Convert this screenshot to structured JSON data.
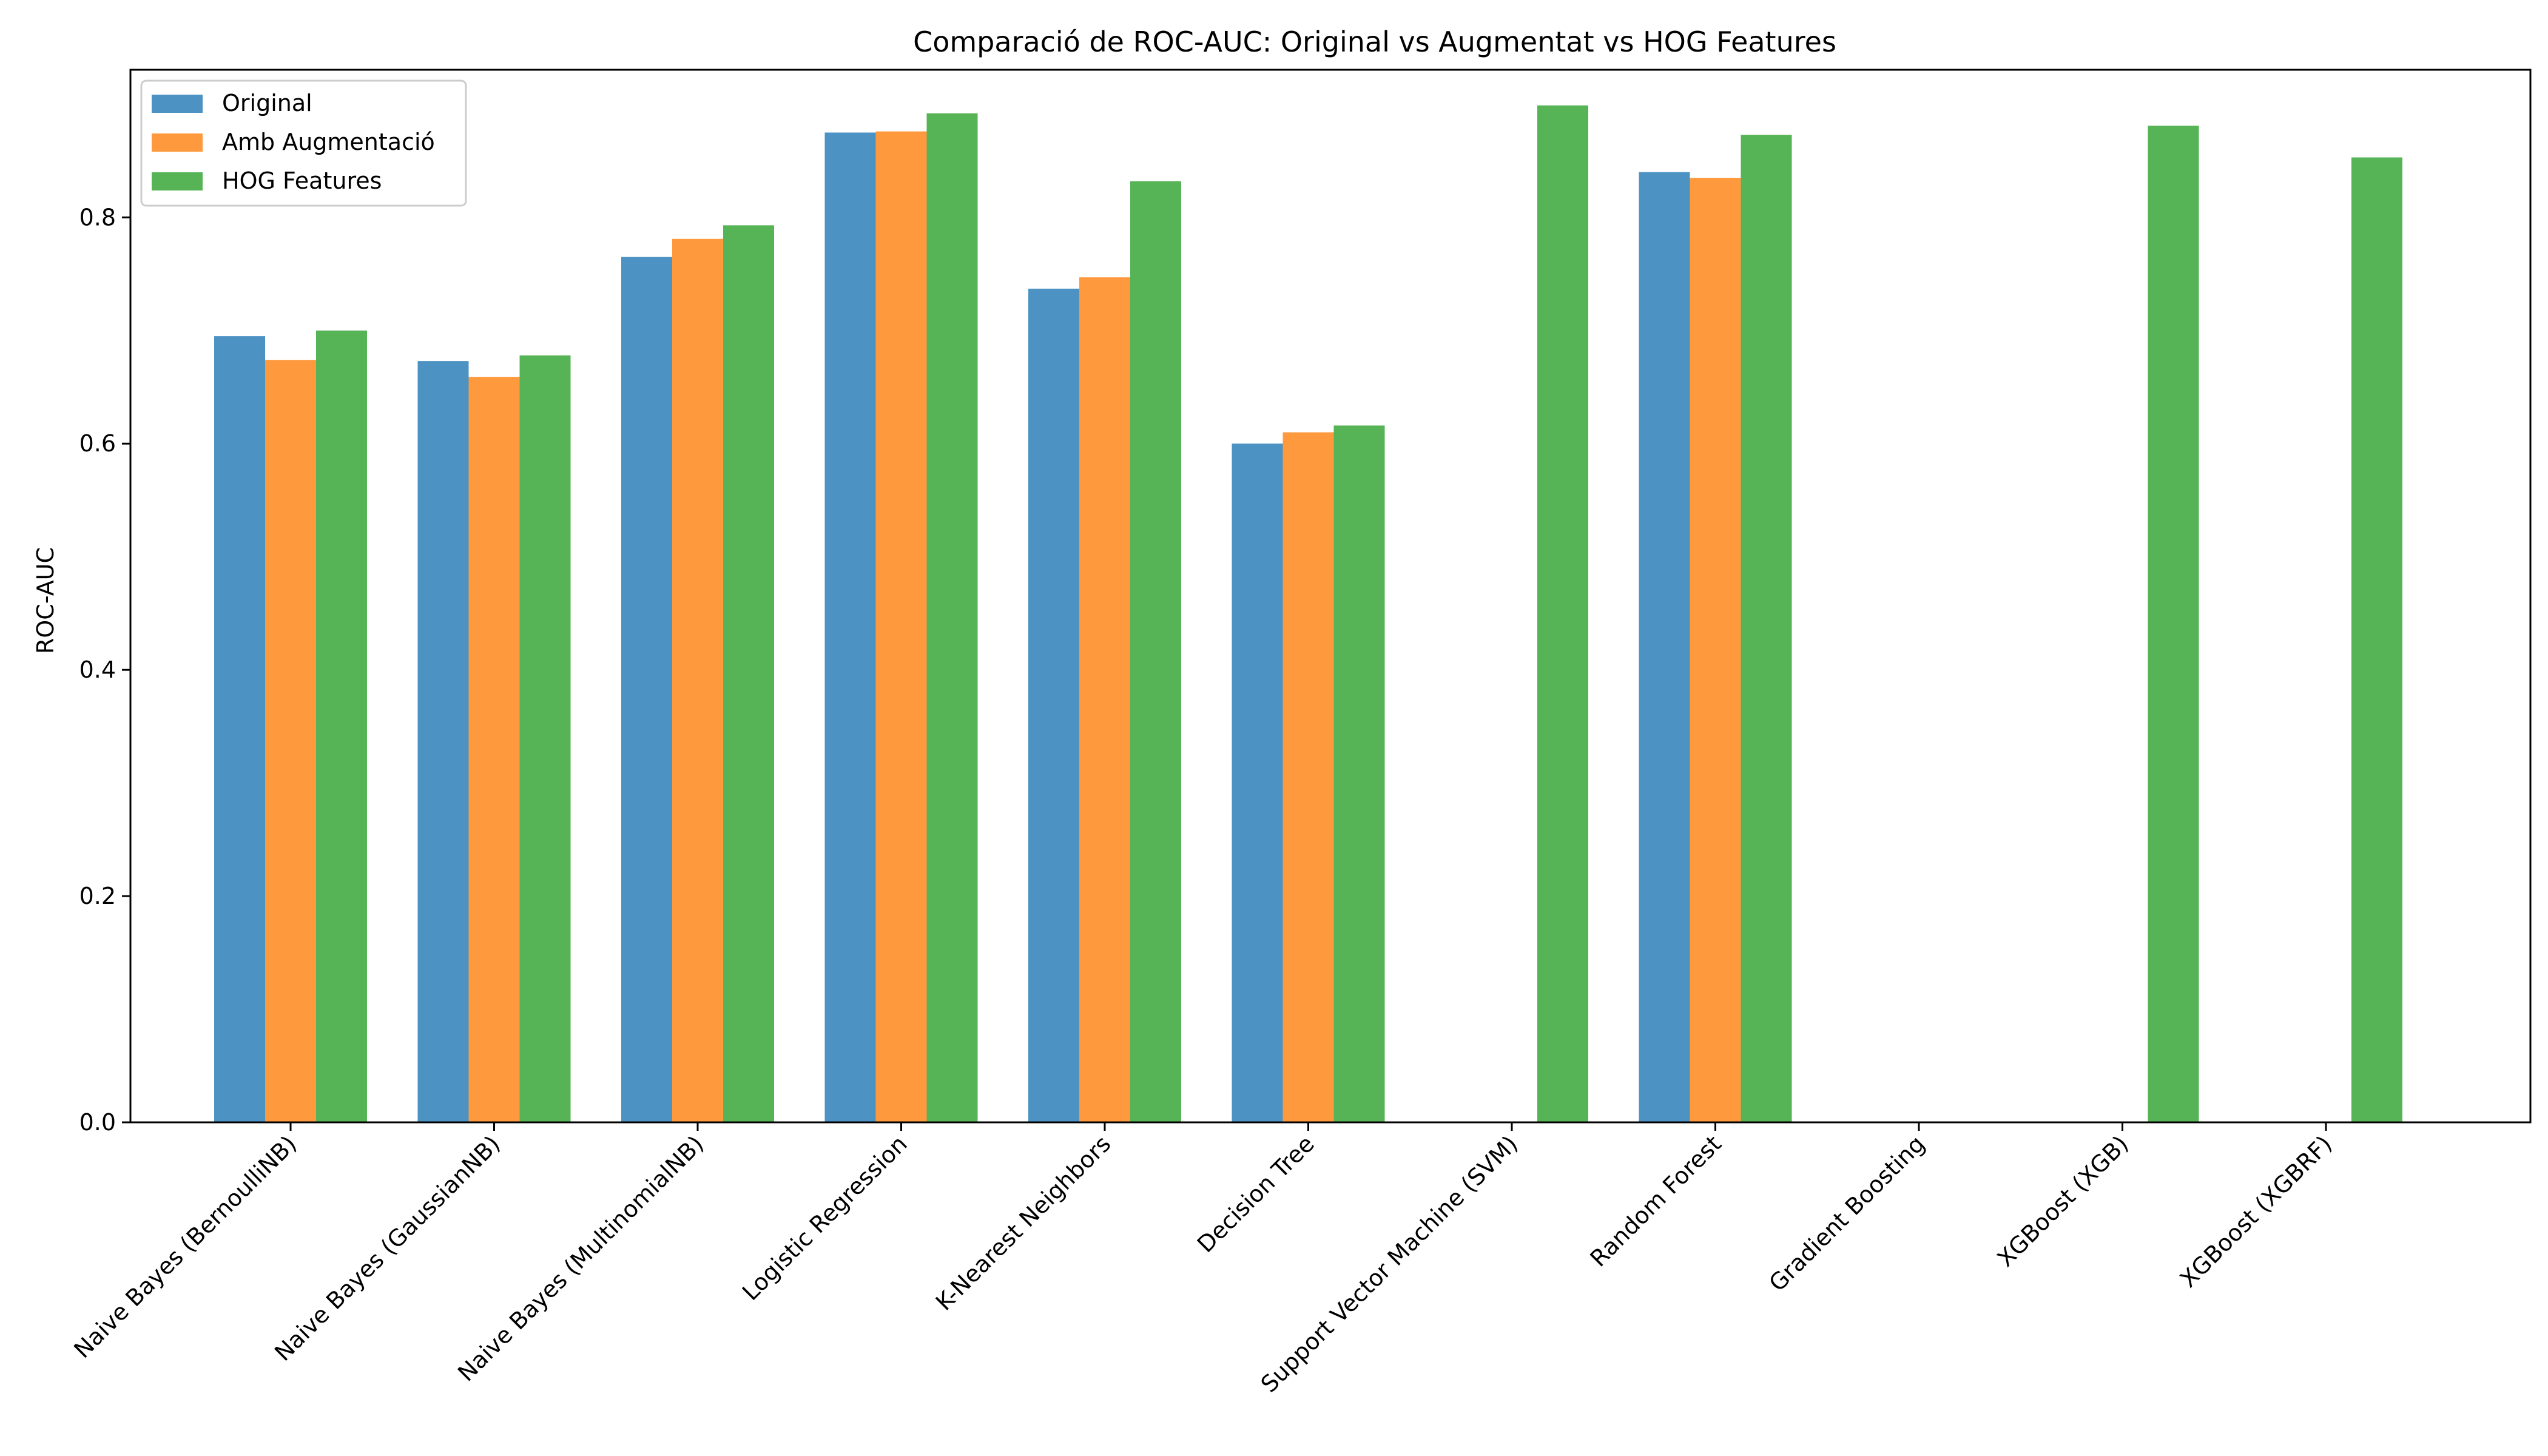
{
  "chart_data": {
    "type": "bar",
    "title": "Comparació de ROC-AUC: Original vs Augmentat vs HOG Features",
    "xlabel": "",
    "ylabel": "ROC-AUC",
    "ylim": [
      0,
      0.9305
    ],
    "yticks": [
      "0.0",
      "0.2",
      "0.4",
      "0.6",
      "0.8"
    ],
    "grid": false,
    "legend_position": "top-left",
    "categories": [
      "Naive Bayes (BernoulliNB)",
      "Naive Bayes (GaussianNB)",
      "Naive Bayes (MultinomialNB)",
      "Logistic Regression",
      "K-Nearest Neighbors",
      "Decision Tree",
      "Support Vector Machine (SVM)",
      "Random Forest",
      "Gradient Boosting",
      "XGBoost (XGB)",
      "XGBoost (XGBRF)"
    ],
    "series": [
      {
        "name": "Original",
        "color": "#1f77b4",
        "values": [
          0.695,
          0.673,
          0.765,
          0.875,
          0.737,
          0.6,
          null,
          0.84,
          null,
          null,
          null
        ]
      },
      {
        "name": "Amb Augmentació",
        "color": "#ff7f0e",
        "values": [
          0.674,
          0.659,
          0.781,
          0.876,
          0.747,
          0.61,
          null,
          0.835,
          null,
          null,
          null
        ]
      },
      {
        "name": "HOG Features",
        "color": "#2ca02c",
        "values": [
          0.7,
          0.678,
          0.793,
          0.892,
          0.832,
          0.616,
          0.899,
          0.873,
          null,
          0.881,
          0.853
        ]
      }
    ]
  }
}
